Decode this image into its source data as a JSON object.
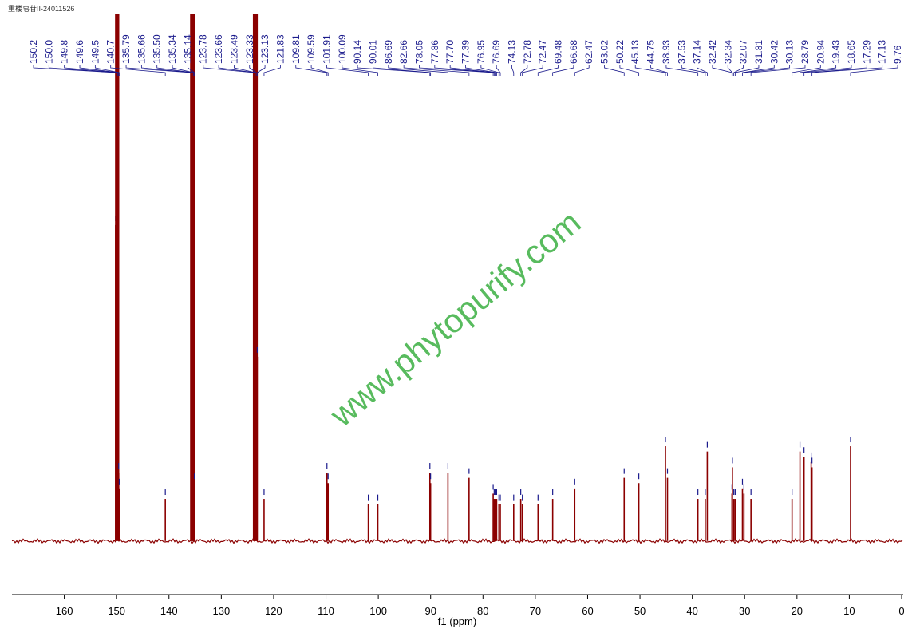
{
  "chart_data": {
    "type": "nmr",
    "title": "重楼皂苷II-24011526",
    "watermark": "www.phytopurify.com",
    "x_label": "f1 (ppm)",
    "xlim": [
      170,
      0
    ],
    "xticks": [
      160,
      150,
      140,
      130,
      120,
      110,
      100,
      90,
      80,
      70,
      60,
      50,
      40,
      30,
      20,
      10,
      0
    ],
    "ylim": [
      -2,
      100
    ],
    "color": "#8b0000",
    "label_color": "#1a1a8c",
    "x": [
      150.2,
      150.0,
      149.8,
      149.6,
      149.5,
      140.7,
      135.79,
      135.66,
      135.5,
      135.34,
      135.14,
      123.78,
      123.66,
      123.49,
      123.33,
      123.13,
      121.83,
      109.81,
      109.59,
      101.91,
      100.09,
      90.14,
      90.01,
      86.69,
      82.66,
      78.05,
      77.86,
      77.7,
      77.39,
      76.95,
      76.69,
      74.13,
      72.78,
      72.47,
      69.48,
      66.68,
      62.47,
      53.02,
      50.22,
      45.13,
      44.75,
      38.93,
      37.53,
      37.14,
      32.42,
      32.34,
      32.07,
      31.81,
      30.42,
      30.13,
      28.79,
      20.94,
      19.43,
      18.65,
      17.29,
      17.13,
      9.76
    ],
    "x_labels": [
      "150.2",
      "150.0",
      "149.8",
      "149.6",
      "149.5",
      "140.7",
      "135.79",
      "135.66",
      "135.50",
      "135.34",
      "135.14",
      "123.78",
      "123.66",
      "123.49",
      "123.33",
      "123.13",
      "121.83",
      "109.81",
      "109.59",
      "101.91",
      "100.09",
      "90.14",
      "90.01",
      "86.69",
      "82.66",
      "78.05",
      "77.86",
      "77.70",
      "77.39",
      "76.95",
      "76.69",
      "74.13",
      "72.78",
      "72.47",
      "69.48",
      "66.68",
      "62.47",
      "53.02",
      "50.22",
      "45.13",
      "44.75",
      "38.93",
      "37.53",
      "37.14",
      "32.42",
      "32.34",
      "32.07",
      "31.81",
      "30.42",
      "30.13",
      "28.79",
      "20.94",
      "19.43",
      "18.65",
      "17.29",
      "17.13",
      "9.76"
    ],
    "values": [
      60,
      100,
      100,
      13,
      10,
      8,
      55,
      100,
      100,
      100,
      11,
      22,
      100,
      100,
      100,
      35,
      8,
      13,
      11,
      7,
      7,
      13,
      11,
      13,
      12,
      9,
      8,
      8,
      8,
      7,
      7,
      7,
      8,
      7,
      7,
      8,
      10,
      12,
      11,
      18,
      12,
      8,
      8,
      17,
      9,
      14,
      8,
      8,
      10,
      9,
      8,
      8,
      17,
      16,
      15,
      14,
      18
    ]
  }
}
